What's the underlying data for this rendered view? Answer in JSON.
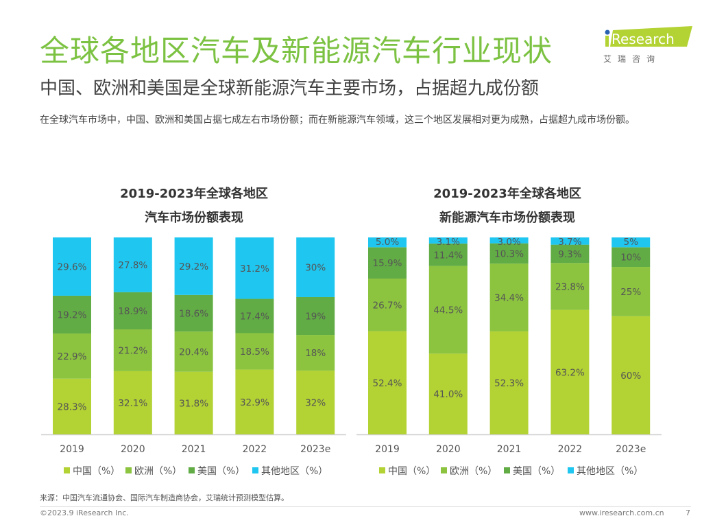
{
  "header": {
    "title": "全球各地区汽车及新能源汽车行业现状",
    "subtitle": "中国、欧洲和美国是全球新能源汽车主要市场，占据超九成份额",
    "description": "在全球汽车市场中，中国、欧洲和美国占据七成左右市场份额；而在新能源汽车领域，这三个地区发展相对更为成熟，占据超九成市场份额。"
  },
  "logo": {
    "brand": "iResearch",
    "cn": "艾 瑞 咨 询",
    "color": "#b3d233"
  },
  "colors": {
    "china": "#b3d233",
    "europe": "#8cc43f",
    "usa": "#62ac45",
    "other": "#1ec6f0",
    "title": "#7cc242"
  },
  "chart_data": [
    {
      "type": "bar",
      "stacked": true,
      "title_line1": "2019-2023年全球各地区",
      "title_line2": "汽车市场份额表现",
      "categories": [
        "2019",
        "2020",
        "2021",
        "2022",
        "2023e"
      ],
      "series": [
        {
          "name": "中国（%）",
          "values": [
            28.3,
            32.1,
            31.8,
            32.9,
            32
          ],
          "labels": [
            "28.3%",
            "32.1%",
            "31.8%",
            "32.9%",
            "32%"
          ]
        },
        {
          "name": "欧洲（%）",
          "values": [
            22.9,
            21.2,
            20.4,
            18.5,
            18
          ],
          "labels": [
            "22.9%",
            "21.2%",
            "20.4%",
            "18.5%",
            "18%"
          ]
        },
        {
          "name": "美国（%）",
          "values": [
            19.2,
            18.9,
            18.6,
            17.4,
            19
          ],
          "labels": [
            "19.2%",
            "18.9%",
            "18.6%",
            "17.4%",
            "19%"
          ]
        },
        {
          "name": "其他地区（%）",
          "values": [
            29.6,
            27.8,
            29.2,
            31.2,
            30
          ],
          "labels": [
            "29.6%",
            "27.8%",
            "29.2%",
            "31.2%",
            "30%"
          ]
        }
      ],
      "ylim": [
        0,
        100
      ],
      "grid": false,
      "legend": "bottom"
    },
    {
      "type": "bar",
      "stacked": true,
      "title_line1": "2019-2023年全球各地区",
      "title_line2": "新能源汽车市场份额表现",
      "categories": [
        "2019",
        "2020",
        "2021",
        "2022",
        "2023e"
      ],
      "series": [
        {
          "name": "中国（%）",
          "values": [
            52.4,
            41.0,
            52.3,
            63.2,
            60
          ],
          "labels": [
            "52.4%",
            "41.0%",
            "52.3%",
            "63.2%",
            "60%"
          ]
        },
        {
          "name": "欧洲（%）",
          "values": [
            26.7,
            44.5,
            34.4,
            23.8,
            25
          ],
          "labels": [
            "26.7%",
            "44.5%",
            "34.4%",
            "23.8%",
            "25%"
          ]
        },
        {
          "name": "美国（%）",
          "values": [
            15.9,
            11.4,
            10.3,
            9.3,
            10
          ],
          "labels": [
            "15.9%",
            "11.4%",
            "10.3%",
            "9.3%",
            "10%"
          ]
        },
        {
          "name": "其他地区（%）",
          "values": [
            5.0,
            3.1,
            3.0,
            3.7,
            5
          ],
          "labels": [
            "5.0%",
            "3.1%",
            "3.0%",
            "3.7%",
            "5%"
          ]
        }
      ],
      "ylim": [
        0,
        100
      ],
      "grid": false,
      "legend": "bottom"
    }
  ],
  "footer": {
    "source": "来源：中国汽车流通协会、国际汽车制造商协会，艾瑞统计预测模型估算。",
    "copyright": "©2023.9 iResearch Inc.",
    "website": "www.iresearch.com.cn",
    "page": "7"
  }
}
